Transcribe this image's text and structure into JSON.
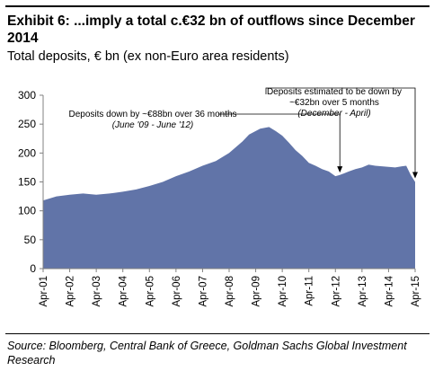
{
  "header": {
    "title": "Exhibit 6: ...imply a total c.€32 bn of outflows since December 2014",
    "subtitle": "Total deposits, € bn (ex non-Euro area residents)"
  },
  "footer": {
    "source": "Source: Bloomberg, Central Bank of Greece, Goldman Sachs Global Investment Research"
  },
  "colors": {
    "area_fill": "#6174a8",
    "axis": "#808080",
    "text": "#000000"
  },
  "annotations": [
    {
      "text": [
        "Deposits down by ~€88bn over 36 months",
        "(June '09 - June '12)"
      ],
      "target_x": "Jun-12",
      "target_y": 160
    },
    {
      "text": [
        "Deposits estimated to be down by",
        "~€32bn over 5 months",
        "(December - April)"
      ],
      "target_x": "Apr-15",
      "target_y": 150
    }
  ],
  "chart_data": {
    "type": "area",
    "title": "Total deposits, € bn (ex non-Euro area residents)",
    "xlabel": "",
    "ylabel": "",
    "ylim": [
      0,
      300
    ],
    "yticks": [
      0,
      50,
      100,
      150,
      200,
      250,
      300
    ],
    "xticks": [
      "Apr-01",
      "Apr-02",
      "Apr-03",
      "Apr-04",
      "Apr-05",
      "Apr-06",
      "Apr-07",
      "Apr-08",
      "Apr-09",
      "Apr-10",
      "Apr-11",
      "Apr-12",
      "Apr-13",
      "Apr-14",
      "Apr-15"
    ],
    "grid": false,
    "legend": "none",
    "x": [
      "Apr-01",
      "Oct-01",
      "Apr-02",
      "Oct-02",
      "Apr-03",
      "Oct-03",
      "Apr-04",
      "Oct-04",
      "Apr-05",
      "Oct-05",
      "Apr-06",
      "Oct-06",
      "Apr-07",
      "Oct-07",
      "Apr-08",
      "Oct-08",
      "Jan-09",
      "Jun-09",
      "Oct-09",
      "Jan-10",
      "Apr-10",
      "Jul-10",
      "Oct-10",
      "Jan-11",
      "Apr-11",
      "Jul-11",
      "Oct-11",
      "Jan-12",
      "Apr-12",
      "Jun-12",
      "Oct-12",
      "Jan-13",
      "Apr-13",
      "Jul-13",
      "Oct-13",
      "Jan-14",
      "Apr-14",
      "Jul-14",
      "Oct-14",
      "Dec-14",
      "Feb-15",
      "Apr-15"
    ],
    "values": [
      118,
      125,
      128,
      130,
      128,
      130,
      133,
      137,
      143,
      150,
      160,
      168,
      178,
      186,
      200,
      220,
      232,
      242,
      245,
      238,
      230,
      218,
      205,
      195,
      183,
      178,
      172,
      168,
      160,
      162,
      168,
      172,
      175,
      180,
      178,
      177,
      176,
      175,
      177,
      178,
      162,
      150
    ]
  }
}
